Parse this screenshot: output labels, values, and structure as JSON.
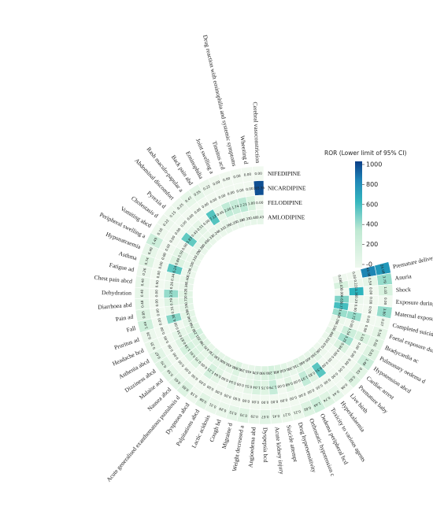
{
  "chart_data": {
    "type": "heatmap",
    "title": "",
    "layout": "circular",
    "rings": [
      "NIFEDIPINE",
      "NICARDIPINE",
      "FELODIPINE",
      "AMLODIPINE"
    ],
    "categories": [
      "Premature delivery",
      "Anuria",
      "Shock",
      "Exposure during pregnancy",
      "Maternal exposure during pregnancy",
      "Completed suicide",
      "Foetal exposure during pregnancy",
      "Bradycardia ac",
      "Pulmonary oedema d",
      "Hypotension abcd",
      "Cardiac arrest",
      "Premature baby",
      "Live birth",
      "Hyperkalaemia",
      "Toxicity to various agents",
      "Oedema peripheral bcd",
      "Orthostatic hypotension c",
      "Drug hypersensitivity",
      "Suicide attempt",
      "Acute kidney injury",
      "Dyspepsia bcd",
      "Angioedema abd",
      "Weight decreased a",
      "Migraine d",
      "Cough bd",
      "Lactic acidosis",
      "Palpitations abcd",
      "Dyspnoea abcd",
      "Acute generalised exanthematous pustulosis d",
      "Nausea abcd",
      "Malaise acd",
      "Dizziness abcd",
      "Asthenia abcd",
      "Headache bcd",
      "Pruritus ad",
      "Fall",
      "Pain ad",
      "Diarrhoea abd",
      "Dehydration",
      "Chest pain abcd",
      "Fatigue ad",
      "Asthma",
      "Hyponatraemia",
      "Peripheral swelling a",
      "Vomiting abcd",
      "Cholestasis d",
      "Pyrexia d",
      "Abdominal discomfort",
      "Rash maculo-papular a",
      "Back pain abd",
      "Eosinophilia",
      "Joint swelling a",
      "Tinnitus acd",
      "Drug reaction with eosinophilia and systemic symptoms",
      "Wheezing d",
      "Cerebral vasoconstriction"
    ],
    "values": {
      "NIFEDIPINE": [
        24.08,
        3.79,
        1.03,
        0.0,
        3.8,
        0.07,
        0.56,
        0.62,
        0.81,
        1.48,
        0.62,
        0.82,
        0.06,
        0.44,
        0.74,
        1.44,
        0.82,
        0.21,
        0.27,
        0.41,
        0.67,
        0.29,
        0.7,
        0.53,
        0.29,
        0.31,
        0.68,
        0.18,
        0.85,
        0.65,
        0.59,
        0.7,
        0.67,
        0.35,
        0.26,
        1.44,
        0.85,
        0.48,
        0.4,
        0.4,
        0.26,
        0.74,
        0.4,
        1.49,
        0.16,
        0.22,
        0.15,
        0.25,
        0.47,
        0.55,
        0.22,
        0.09,
        0.0,
        0.0,
        0.0,
        0.0
      ],
      "NICARDIPINE": [
        43.08,
        0.54,
        0.0,
        0.0,
        0.0,
        0.0,
        0.0,
        1.03,
        0.0,
        0.0,
        0.0,
        0.0,
        0.0,
        0.0,
        0.0,
        0.0,
        0.0,
        0.0,
        0.0,
        0.0,
        0.0,
        0.0,
        0.0,
        0.0,
        0.0,
        0.0,
        0.0,
        0.0,
        0.0,
        0.0,
        0.0,
        0.0,
        0.0,
        0.0,
        0.0,
        0.0,
        0.0,
        0.0,
        0.0,
        0.0,
        0.0,
        0.0,
        0.0,
        0.0,
        0.0,
        0.0,
        0.0,
        0.0,
        0.0,
        0.0,
        0.0,
        0.0,
        0.0,
        0.0,
        0.0,
        165.35
      ],
      "FELODIPINE": [
        0.0,
        0.22,
        11.36,
        0.23,
        0.0,
        3.72,
        0.0,
        1.54,
        3.25,
        0.94,
        0.0,
        0.0,
        0.0,
        6.51,
        0.82,
        1.93,
        0.0,
        0.68,
        0.0,
        1.79,
        0.75,
        1.04,
        0.51,
        0.0,
        0.54,
        0.0,
        0.64,
        1.21,
        0.0,
        0.75,
        0.91,
        1.19,
        0.83,
        0.5,
        0.0,
        4.38,
        0.31,
        0.79,
        3.75,
        0.26,
        0.34,
        6.24,
        0.86,
        0.59,
        0.0,
        5.83,
        0.43,
        0.51,
        0.0,
        7.12,
        0.45,
        2.0,
        1.74,
        2.21,
        1.0,
        0.0
      ],
      "AMLODIPINE": [
        0.08,
        1.03,
        0.0,
        4.63,
        8.77,
        3.6,
        0.3,
        0.1,
        0.46,
        0.31,
        0.07,
        0.16,
        0.55,
        0.4,
        0.46,
        0.71,
        0.36,
        0.61,
        0.89,
        1.2,
        0.93,
        0.67,
        0.41,
        0.29,
        0.86,
        0.45,
        0.6,
        0.53,
        0.73,
        0.47,
        0.78,
        0.82,
        1.29,
        0.76,
        0.54,
        0.58,
        0.55,
        0.72,
        0.62,
        0.36,
        0.4,
        0.25,
        0.32,
        0.31,
        0.28,
        0.38,
        0.45,
        0.33,
        0.24,
        0.31,
        0.36,
        0.25,
        0.38,
        0.32,
        0.4,
        0.43
      ]
    },
    "colorbar": {
      "title": "ROR (Lower limit of 95% CI)",
      "ticks": [
        "1000",
        "800",
        "600",
        "400",
        "200",
        "-0"
      ],
      "range": [
        0,
        1000
      ],
      "scale": "log-like",
      "colors": [
        "#eef8ee",
        "#cdeedd",
        "#7fd3c2",
        "#2bb3bd",
        "#1e88b8",
        "#0b4f92"
      ]
    }
  }
}
